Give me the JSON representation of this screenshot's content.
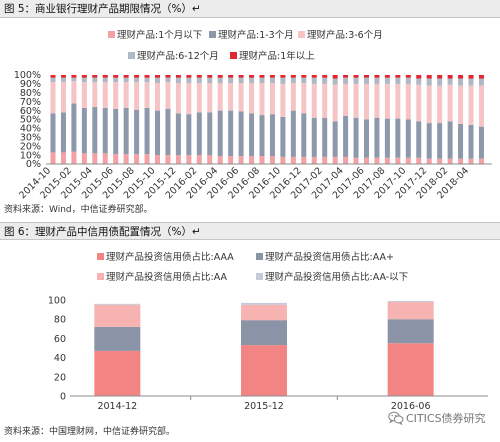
{
  "figure5": {
    "source": "资料来源：Wind，中信证券研究部。"
  },
  "figure6": {
    "source": "资料来源：中国理财网，中信证券研究部。"
  },
  "watermark": {
    "text": "CITICS债券研究",
    "icon": "wechat-icon"
  },
  "chart_data": [
    {
      "type": "bar",
      "stacked": true,
      "title": "图 5：商业银行理财产品期限情况（%）↵",
      "legend_position": "top",
      "grid": false,
      "ylim": [
        0,
        100
      ],
      "y_ticks": [
        0,
        10,
        20,
        30,
        40,
        50,
        60,
        70,
        80,
        90,
        100
      ],
      "y_tick_labels": [
        "0%",
        "10%",
        "20%",
        "30%",
        "40%",
        "50%",
        "60%",
        "70%",
        "80%",
        "90%",
        "100%"
      ],
      "categories": [
        "2014-10",
        "",
        "2015-02",
        "",
        "2015-04",
        "",
        "2015-06",
        "",
        "2015-08",
        "",
        "2015-10",
        "",
        "2015-12",
        "",
        "2016-02",
        "",
        "2016-04",
        "",
        "2016-06",
        "",
        "2016-08",
        "",
        "2016-10",
        "",
        "2016-12",
        "",
        "2017-02",
        "",
        "2017-04",
        "",
        "2017-06",
        "",
        "2017-08",
        "",
        "2017-10",
        "",
        "2017-12",
        "",
        "2018-02",
        "",
        "2018-04",
        ""
      ],
      "series": [
        {
          "name": "理财产品:1个月以下",
          "color": "#F3A1A4",
          "values": [
            13,
            13,
            14,
            12,
            12,
            12,
            11,
            11,
            11,
            11,
            10,
            10,
            10,
            10,
            10,
            10,
            9,
            9,
            9,
            9,
            9,
            9,
            8,
            8,
            8,
            8,
            8,
            8,
            8,
            7,
            7,
            7,
            7,
            7,
            7,
            7,
            6,
            6,
            6,
            6,
            6,
            6
          ]
        },
        {
          "name": "理财产品:1-3个月",
          "color": "#8D98AB",
          "values": [
            44,
            45,
            54,
            51,
            52,
            51,
            51,
            52,
            50,
            52,
            50,
            52,
            47,
            46,
            48,
            48,
            51,
            51,
            50,
            48,
            46,
            47,
            45,
            52,
            49,
            44,
            44,
            40,
            46,
            45,
            43,
            45,
            44,
            44,
            43,
            41,
            40,
            40,
            42,
            39,
            38,
            36
          ]
        },
        {
          "name": "理财产品:3-6个月",
          "color": "#F7C4C5",
          "values": [
            35,
            34,
            25,
            29,
            28,
            29,
            30,
            29,
            31,
            29,
            31,
            30,
            34,
            35,
            33,
            33,
            31,
            31,
            32,
            34,
            36,
            35,
            37,
            31,
            34,
            38,
            38,
            41,
            36,
            38,
            40,
            38,
            39,
            39,
            40,
            41,
            42,
            42,
            41,
            43,
            44,
            46
          ]
        },
        {
          "name": "理财产品:6-12个月",
          "color": "#B0B8C6",
          "values": [
            5,
            5,
            4,
            5,
            5,
            5,
            5,
            5,
            5,
            5,
            6,
            5,
            6,
            6,
            6,
            6,
            6,
            6,
            6,
            6,
            6,
            6,
            7,
            6,
            6,
            7,
            7,
            7,
            7,
            7,
            7,
            7,
            7,
            7,
            7,
            7,
            8,
            8,
            7,
            8,
            8,
            8
          ]
        },
        {
          "name": "理财产品:1年以上",
          "color": "#E0262E",
          "values": [
            3,
            3,
            3,
            3,
            3,
            3,
            3,
            3,
            3,
            3,
            3,
            3,
            3,
            3,
            3,
            3,
            3,
            3,
            3,
            3,
            3,
            3,
            3,
            3,
            3,
            3,
            3,
            4,
            3,
            3,
            3,
            3,
            3,
            3,
            3,
            4,
            4,
            4,
            4,
            4,
            4,
            4
          ]
        }
      ]
    },
    {
      "type": "bar",
      "stacked": true,
      "title": "图 6：理财产品中信用债配置情况（%）↵",
      "legend_position": "top",
      "grid": false,
      "ylim": [
        0,
        100
      ],
      "y_ticks": [
        0,
        20,
        40,
        60,
        80,
        100
      ],
      "y_tick_labels": [
        "0",
        "20",
        "40",
        "60",
        "80",
        "100"
      ],
      "categories": [
        "2014-12",
        "2015-12",
        "2016-06"
      ],
      "series": [
        {
          "name": "理财产品投资信用债占比:AAA",
          "color": "#F28583",
          "values": [
            47,
            53,
            55
          ]
        },
        {
          "name": "理财产品投资信用债占比:AA+",
          "color": "#8A94A6",
          "values": [
            25,
            26,
            25
          ]
        },
        {
          "name": "理财产品投资信用债占比:AA",
          "color": "#F6B3B2",
          "values": [
            23,
            16,
            18
          ]
        },
        {
          "name": "理财产品投资信用债占比:AA-以下",
          "color": "#C3CAD8",
          "values": [
            1,
            2,
            1
          ]
        }
      ]
    }
  ]
}
